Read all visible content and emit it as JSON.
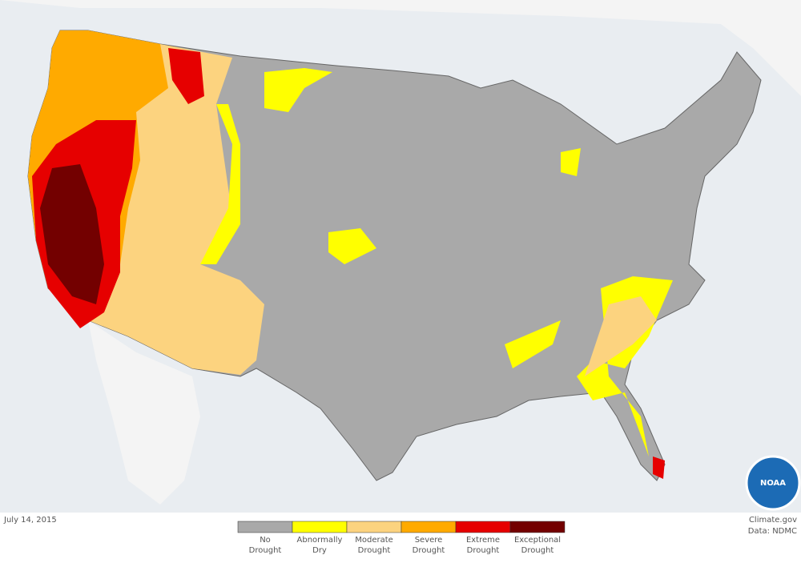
{
  "date": "July 14, 2015",
  "credits": {
    "site": "Climate.gov",
    "source": "Data: NDMC",
    "logo": "NOAA"
  },
  "legend": [
    {
      "lines": [
        "No",
        "Drought"
      ],
      "color": "#a9a9a9"
    },
    {
      "lines": [
        "Abnormally",
        "Dry"
      ],
      "color": "#ffff00"
    },
    {
      "lines": [
        "Moderate",
        "Drought"
      ],
      "color": "#fcd37f"
    },
    {
      "lines": [
        "Severe",
        "Drought"
      ],
      "color": "#ffaa00"
    },
    {
      "lines": [
        "Extreme",
        "Drought"
      ],
      "color": "#e60000"
    },
    {
      "lines": [
        "Exceptional",
        "Drought"
      ],
      "color": "#730000"
    }
  ]
}
